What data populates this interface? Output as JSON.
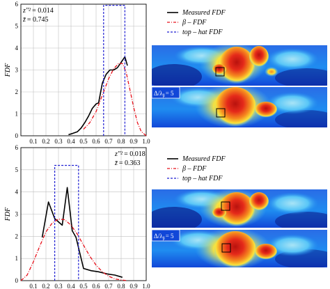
{
  "colors": {
    "measured": "#000000",
    "beta": "#e8101a",
    "tophat": "#1e1ed2",
    "grid": "#bfbfbf",
    "field_colormap": [
      "#0b1f8c",
      "#1147d8",
      "#1f8cf0",
      "#59c6f7",
      "#a9e4f6",
      "#fbe33a",
      "#f58a1f",
      "#e52a1a",
      "#9c0d0d"
    ]
  },
  "legend": {
    "measured": "Measured FDF",
    "beta": "β – FDF",
    "tophat": "top – hat FDF"
  },
  "delta_label": "Δ/λ",
  "delta_sub": "β",
  "delta_value": "= 5",
  "icons": [
    "filter-box-icon"
  ],
  "chart_data": [
    {
      "type": "line",
      "ylabel": "FDF",
      "xlim": [
        0,
        1
      ],
      "ylim": [
        0,
        6
      ],
      "xticks": [
        "0.1",
        "0.2",
        "0.3",
        "0.4",
        "0.5",
        "0.6",
        "0.7",
        "0.8",
        "0.9",
        "1.0"
      ],
      "yticks": [
        "0",
        "1",
        "2",
        "3",
        "4",
        "5",
        "6"
      ],
      "stats": {
        "var_label": "z″²",
        "var_value": "= 0.014",
        "mean_label": "z̄",
        "mean_value": "= 0.745"
      },
      "series": [
        {
          "key": "measured",
          "x": [
            0.38,
            0.41,
            0.45,
            0.48,
            0.51,
            0.54,
            0.57,
            0.6,
            0.62,
            0.65,
            0.68,
            0.71,
            0.74,
            0.77,
            0.8,
            0.83,
            0.85
          ],
          "y": [
            0.05,
            0.1,
            0.18,
            0.35,
            0.6,
            0.9,
            1.25,
            1.45,
            1.5,
            2.4,
            2.8,
            3.0,
            3.0,
            3.1,
            3.35,
            3.6,
            3.2
          ]
        },
        {
          "key": "beta",
          "x": [
            0.5,
            0.55,
            0.6,
            0.65,
            0.7,
            0.74,
            0.78,
            0.81,
            0.84,
            0.87,
            0.9,
            0.93,
            0.96,
            1.0
          ],
          "y": [
            0.3,
            0.6,
            1.1,
            1.85,
            2.6,
            3.05,
            3.3,
            3.3,
            2.9,
            2.1,
            1.3,
            0.6,
            0.2,
            0.0
          ]
        },
        {
          "key": "tophat",
          "x": [
            0.66,
            0.66,
            0.83,
            0.83
          ],
          "y": [
            0.0,
            5.95,
            5.95,
            0.0
          ]
        }
      ]
    },
    {
      "type": "line",
      "ylabel": "FDF",
      "xlim": [
        0,
        1
      ],
      "ylim": [
        0,
        6
      ],
      "xticks": [
        "0.1",
        "0.2",
        "0.3",
        "0.4",
        "0.5",
        "0.6",
        "0.7",
        "0.8",
        "0.9",
        "1.0"
      ],
      "yticks": [
        "0",
        "1",
        "2",
        "3",
        "4",
        "5",
        "6"
      ],
      "stats": {
        "var_label": "z″²",
        "var_value": "= 0.018",
        "mean_label": "z̄",
        "mean_value": "= 0.363"
      },
      "series": [
        {
          "key": "measured",
          "x": [
            0.17,
            0.22,
            0.27,
            0.33,
            0.37,
            0.41,
            0.44,
            0.47,
            0.5,
            0.56,
            0.62,
            0.69,
            0.75,
            0.81
          ],
          "y": [
            1.95,
            3.55,
            2.8,
            2.5,
            4.2,
            2.25,
            1.95,
            1.25,
            0.55,
            0.45,
            0.4,
            0.3,
            0.25,
            0.15
          ]
        },
        {
          "key": "beta",
          "x": [
            0.0,
            0.05,
            0.1,
            0.15,
            0.2,
            0.25,
            0.3,
            0.35,
            0.4,
            0.45,
            0.5,
            0.55,
            0.6,
            0.65,
            0.7,
            0.75,
            0.8,
            0.85
          ],
          "y": [
            0.0,
            0.25,
            0.85,
            1.55,
            2.2,
            2.6,
            2.78,
            2.75,
            2.5,
            2.1,
            1.6,
            1.1,
            0.7,
            0.4,
            0.2,
            0.08,
            0.03,
            0.0
          ]
        },
        {
          "key": "tophat",
          "x": [
            0.27,
            0.27,
            0.46,
            0.46
          ],
          "y": [
            0.0,
            5.2,
            5.2,
            0.0
          ]
        }
      ]
    }
  ]
}
